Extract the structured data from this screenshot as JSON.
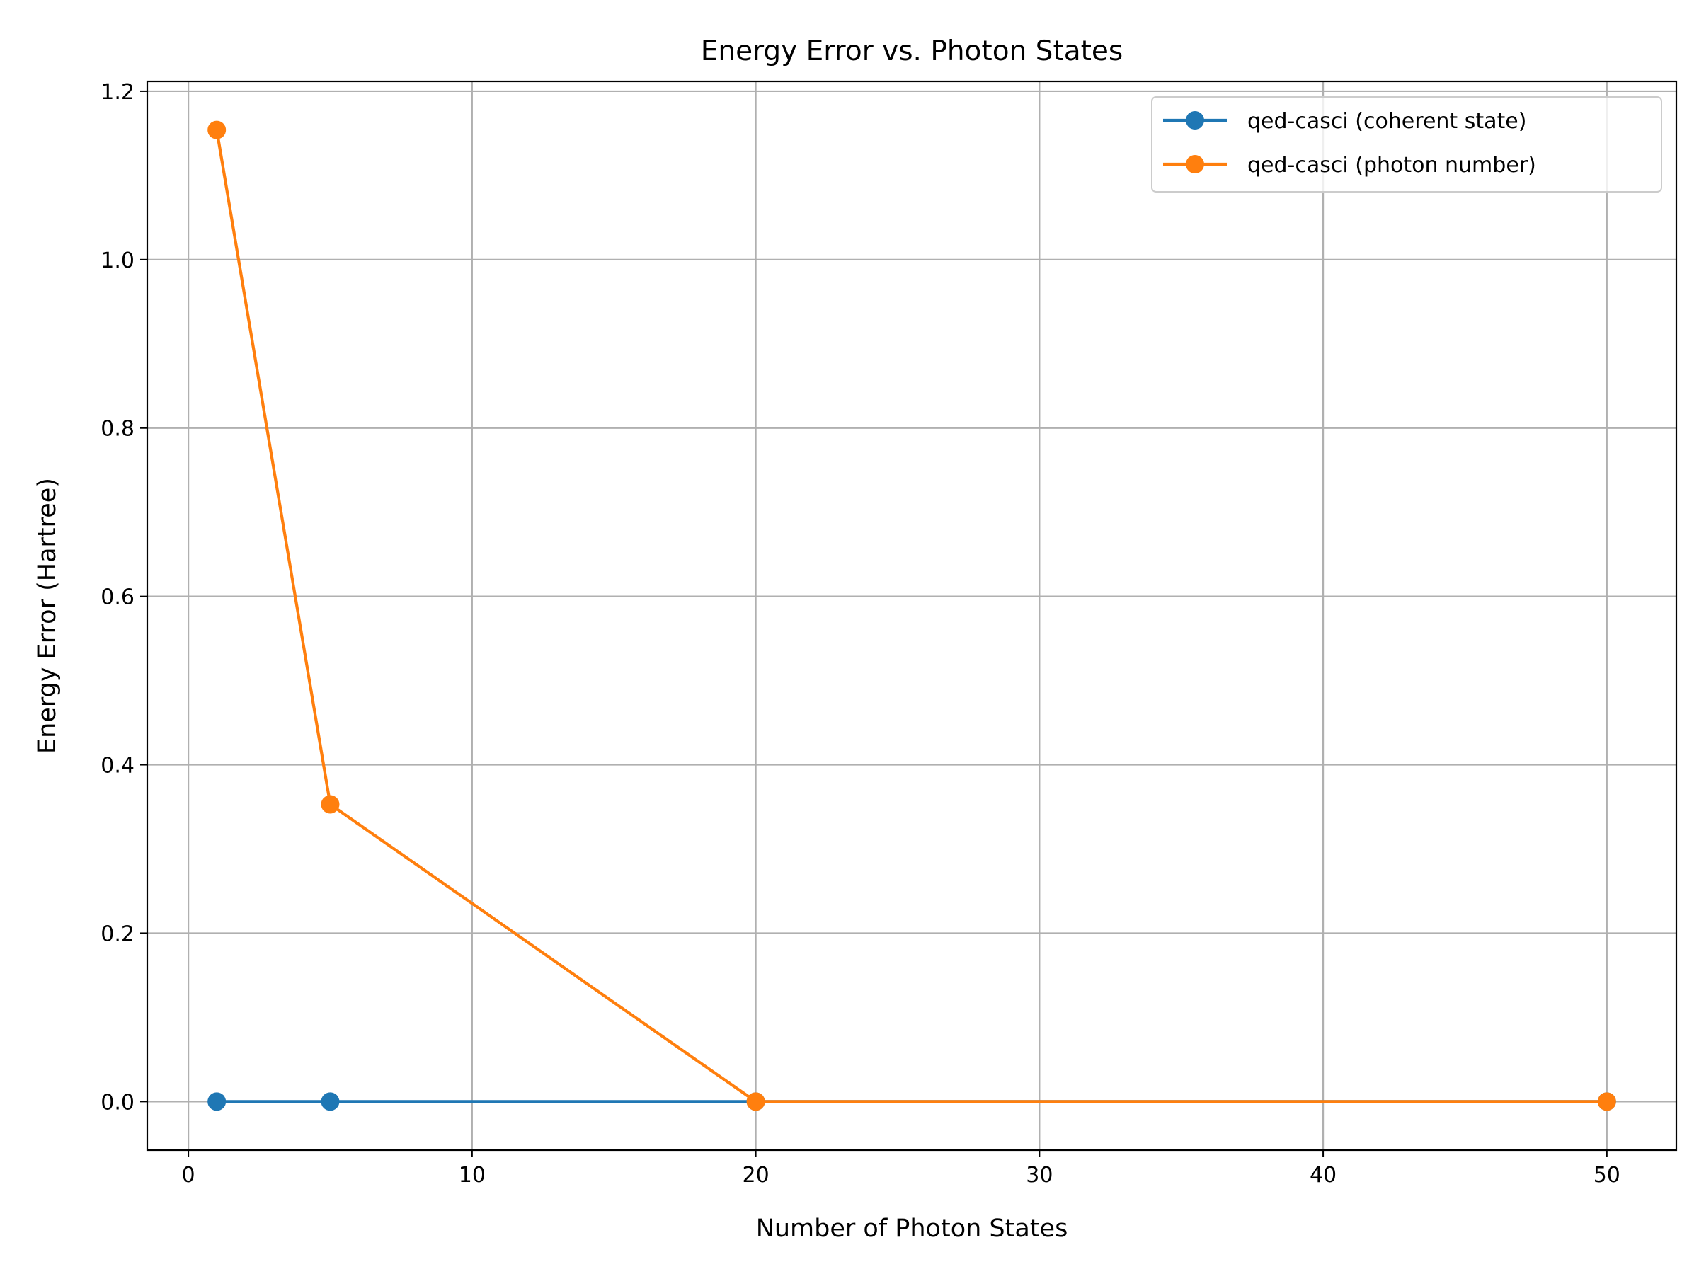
{
  "chart_data": {
    "type": "line",
    "title": "Energy Error vs. Photon States",
    "xlabel": "Number of Photon States",
    "ylabel": "Energy Error (Hartree)",
    "xlim": [
      -1.45,
      52.45
    ],
    "ylim": [
      -0.0577,
      1.2117
    ],
    "xticks": [
      0,
      10,
      20,
      30,
      40,
      50
    ],
    "xtick_labels": [
      "0",
      "10",
      "20",
      "30",
      "40",
      "50"
    ],
    "yticks": [
      0.0,
      0.2,
      0.4,
      0.6,
      0.8,
      1.0,
      1.2
    ],
    "ytick_labels": [
      "0.0",
      "0.2",
      "0.4",
      "0.6",
      "0.8",
      "1.0",
      "1.2"
    ],
    "grid": true,
    "legend_position": "top-right",
    "series": [
      {
        "name": "qed-casci (coherent state)",
        "color": "#1f77b4",
        "x": [
          1,
          5,
          20,
          50
        ],
        "y": [
          0.0,
          0.0,
          0.0,
          0.0
        ]
      },
      {
        "name": "qed-casci (photon number)",
        "color": "#ff7f0e",
        "x": [
          1,
          5,
          20,
          50
        ],
        "y": [
          1.154,
          0.353,
          0.0,
          0.0
        ]
      }
    ]
  }
}
